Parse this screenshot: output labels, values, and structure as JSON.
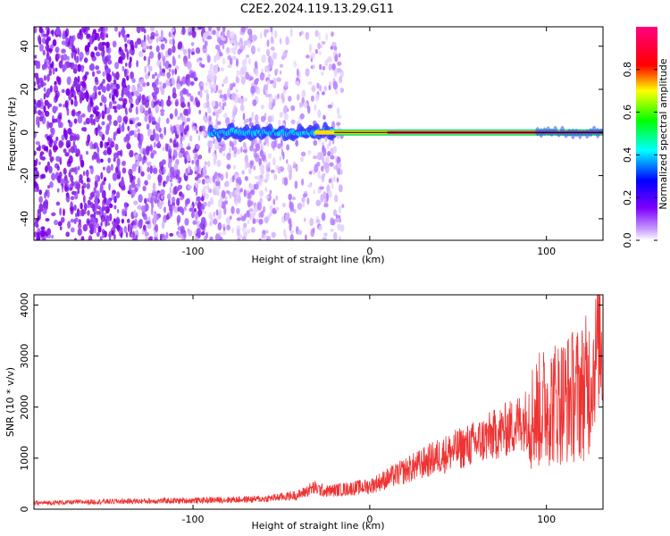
{
  "title": "C2E2.2024.119.13.29.G11",
  "chart_data": [
    {
      "type": "heatmap",
      "xlabel": "Height of straight line (km)",
      "ylabel": "Frequency (Hz)",
      "xlim": [
        -190,
        132
      ],
      "ylim": [
        -50,
        49
      ],
      "x_ticks": [
        -100,
        0,
        100
      ],
      "y_ticks": [
        -40,
        -20,
        0,
        20,
        40
      ],
      "grid": false,
      "colorbar": {
        "label": "Normalized spectral amplitude",
        "range": [
          0,
          1
        ],
        "ticks": [
          0.0,
          0.2,
          0.4,
          0.6,
          0.8
        ],
        "colors": [
          "#ffffff",
          "#8000ff",
          "#0000ff",
          "#00ffff",
          "#00ff00",
          "#ffff00",
          "#ff0000",
          "#ff00aa"
        ]
      },
      "features": {
        "noise_region_x": [
          -190,
          -30
        ],
        "carrier_start_x": -90,
        "carrier_frequency_hz": 0
      },
      "colors": {
        "carrier_peak": "#ff1a66",
        "noise": "#8a2be2"
      }
    },
    {
      "type": "line",
      "xlabel": "Height of straight line (km)",
      "ylabel": "SNR (10 * v/v)",
      "xlim": [
        -190,
        132
      ],
      "ylim": [
        0,
        4200
      ],
      "x_ticks": [
        -100,
        0,
        100
      ],
      "y_ticks": [
        0,
        1000,
        2000,
        3000,
        4000
      ],
      "grid": false,
      "series": [
        {
          "color": "#ee3333",
          "x": [
            -190,
            -150,
            -100,
            -60,
            -40,
            -32,
            -25,
            0,
            20,
            40,
            60,
            80,
            95,
            100,
            110,
            120,
            125,
            128,
            130,
            132
          ],
          "y": [
            120,
            150,
            170,
            200,
            280,
            420,
            350,
            450,
            750,
            1050,
            1300,
            1600,
            1900,
            2050,
            2150,
            2300,
            2500,
            3000,
            3600,
            3000
          ]
        }
      ]
    }
  ]
}
